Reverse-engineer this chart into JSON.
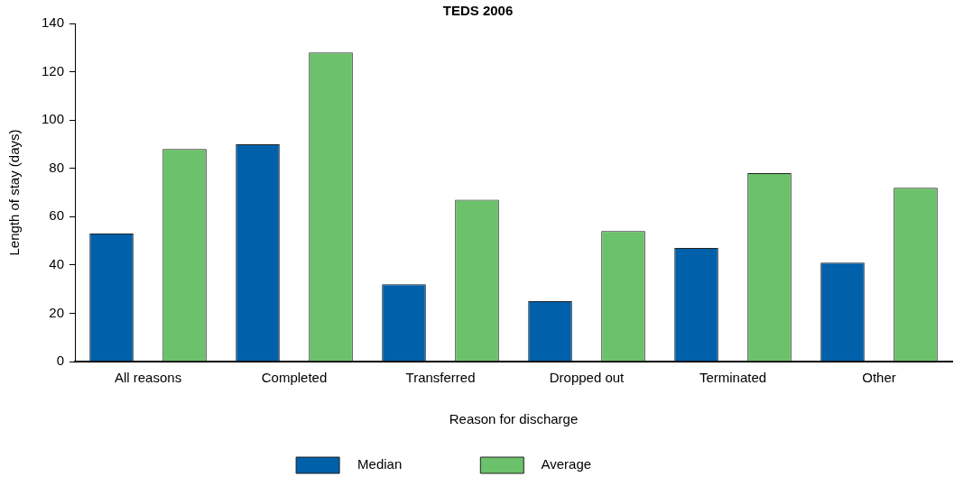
{
  "chart_data": {
    "type": "bar",
    "title": "TEDS 2006",
    "xlabel": "Reason for discharge",
    "ylabel": "Length of stay (days)",
    "categories": [
      "All reasons",
      "Completed",
      "Transferred",
      "Dropped out",
      "Terminated",
      "Other"
    ],
    "series": [
      {
        "name": "Median",
        "color": "#0060aa",
        "values": [
          53,
          90,
          32,
          25,
          47,
          41
        ]
      },
      {
        "name": "Average",
        "color": "#6cc16b",
        "values": [
          88,
          128,
          67,
          54,
          78,
          72
        ]
      }
    ],
    "ylim": [
      0,
      140
    ],
    "yticks": [
      0,
      20,
      40,
      60,
      80,
      100,
      120,
      140
    ],
    "grid": false,
    "legend": "bottom"
  }
}
